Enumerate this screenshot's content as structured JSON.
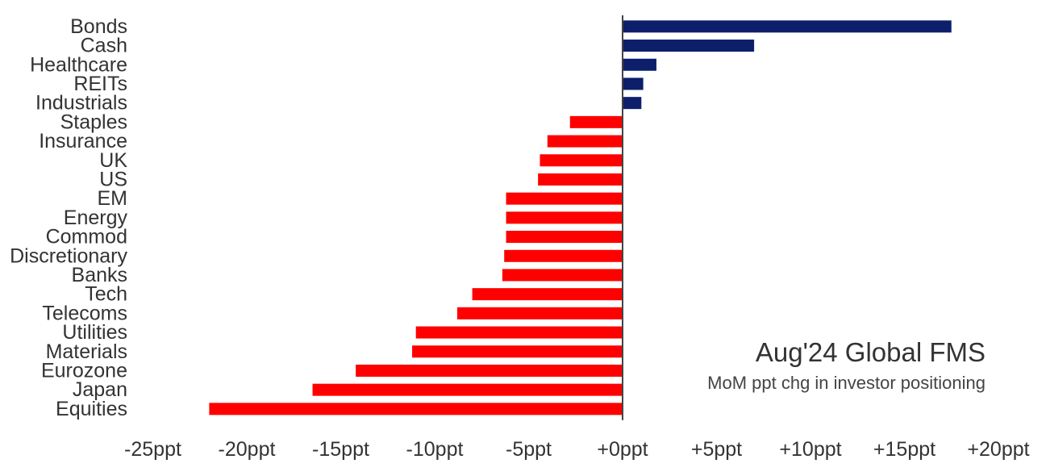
{
  "chart_data": {
    "type": "bar",
    "orientation": "horizontal",
    "title": "Aug'24 Global FMS",
    "subtitle": "MoM ppt chg in investor positioning",
    "categories": [
      "Bonds",
      "Cash",
      "Healthcare",
      "REITs",
      "Industrials",
      "Staples",
      "Insurance",
      "UK",
      "US",
      "EM",
      "Energy",
      "Commod",
      "Discretionary",
      "Banks",
      "Tech",
      "Telecoms",
      "Utilities",
      "Materials",
      "Eurozone",
      "Japan",
      "Equities"
    ],
    "values": [
      17.5,
      7,
      1.8,
      1.1,
      1,
      -2.8,
      -4,
      -4.4,
      -4.5,
      -6.2,
      -6.2,
      -6.2,
      -6.3,
      -6.4,
      -8,
      -8.8,
      -11,
      -11.2,
      -14.2,
      -16.5,
      -22
    ],
    "xlim": [
      -25,
      20
    ],
    "x_ticks": [
      -25,
      -20,
      -15,
      -10,
      -5,
      0,
      5,
      10,
      15,
      20
    ],
    "x_tick_labels": [
      "-25ppt",
      "-20ppt",
      "-15ppt",
      "-10ppt",
      "-5ppt",
      "+0ppt",
      "+5ppt",
      "+10ppt",
      "+15ppt",
      "+20ppt"
    ],
    "grid": false,
    "colors": {
      "positive": "#0d1f6b",
      "negative": "#ff0000",
      "axis": "#444444",
      "text": "#333333"
    }
  }
}
